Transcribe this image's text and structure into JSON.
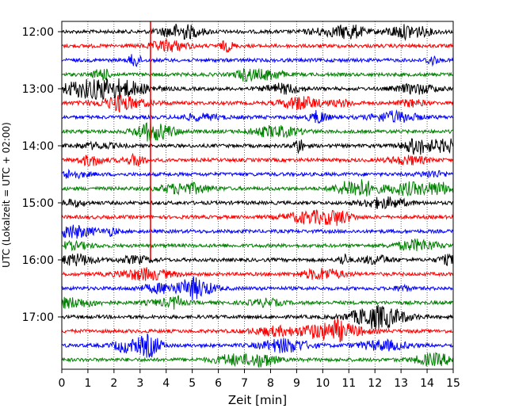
{
  "chart_data": {
    "type": "line",
    "title": "",
    "xlabel": "Zeit  [min]",
    "ylabel": "UTC (Lokalzeit = UTC + 02:00)",
    "xlim": [
      0,
      15
    ],
    "x_ticks": [
      0,
      1,
      2,
      3,
      4,
      5,
      6,
      7,
      8,
      9,
      10,
      11,
      12,
      13,
      14,
      15
    ],
    "grid": "vertical dotted",
    "y_tick_labels": [
      "12:00",
      "13:00",
      "14:00",
      "15:00",
      "16:00",
      "17:00"
    ],
    "trace_interval_min": 15,
    "first_trace": "12:00",
    "last_trace": "17:45",
    "trace_colors": [
      "#000000",
      "#ff0000",
      "#0000ff",
      "#008000"
    ],
    "marker": {
      "x": 3.4,
      "from": "12:00",
      "to": "16:00",
      "color": "#ff0000"
    }
  }
}
